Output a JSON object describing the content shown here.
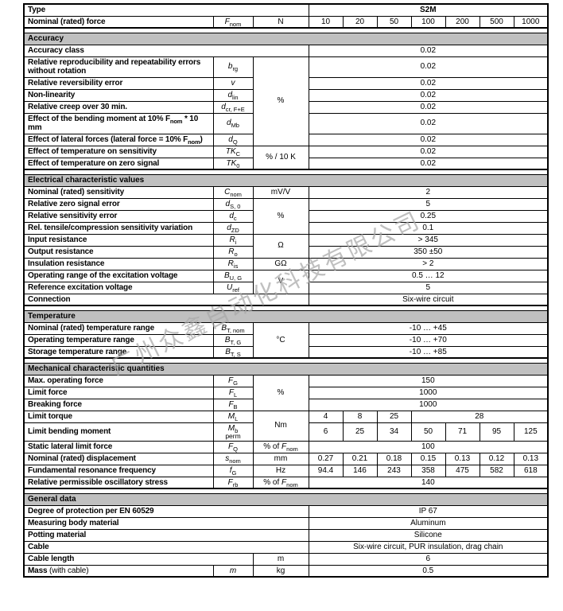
{
  "watermark": {
    "text": "广州众鑫自动化科技有限公司",
    "color": "#a9a9a9"
  },
  "model": "S2M",
  "table": {
    "rows": [
      {
        "kind": "r",
        "cells": [
          {
            "t": "Type",
            "k": "l",
            "c": 3
          },
          {
            "t": "S2M",
            "k": "vb",
            "c": 7
          }
        ]
      },
      {
        "kind": "r",
        "cells": [
          {
            "t": "Nominal (rated) force",
            "k": "l"
          },
          {
            "t": "F~nom~",
            "k": "s"
          },
          {
            "t": "N",
            "k": "u"
          },
          {
            "t": "10",
            "k": "v"
          },
          {
            "t": "20",
            "k": "v"
          },
          {
            "t": "50",
            "k": "v"
          },
          {
            "t": "100",
            "k": "v"
          },
          {
            "t": "200",
            "k": "v"
          },
          {
            "t": "500",
            "k": "v"
          },
          {
            "t": "1000",
            "k": "v"
          }
        ]
      },
      {
        "kind": "g"
      },
      {
        "kind": "h",
        "title": "Accuracy"
      },
      {
        "kind": "r",
        "cells": [
          {
            "t": "Accuracy class",
            "k": "l",
            "c": 3
          },
          {
            "t": "0.02",
            "k": "v",
            "c": 7
          }
        ]
      },
      {
        "kind": "r",
        "cells": [
          {
            "t": "Relative reproducibility and repeatability errors without rotation",
            "k": "l"
          },
          {
            "t": "b~rg~",
            "k": "s"
          },
          {
            "t": "%",
            "k": "u",
            "r": 6
          },
          {
            "t": "0.02",
            "k": "v",
            "c": 7
          }
        ]
      },
      {
        "kind": "r",
        "cells": [
          {
            "t": "Relative reversibility error",
            "k": "l"
          },
          {
            "t": "v",
            "k": "s"
          },
          {
            "t": "0.02",
            "k": "v",
            "c": 7
          }
        ]
      },
      {
        "kind": "r",
        "cells": [
          {
            "t": "Non-linearity",
            "k": "l"
          },
          {
            "t": "d~lin~",
            "k": "s"
          },
          {
            "t": "0.02",
            "k": "v",
            "c": 7
          }
        ]
      },
      {
        "kind": "r",
        "cells": [
          {
            "t": "Relative creep over 30 min.",
            "k": "l"
          },
          {
            "t": "d~cr, F+E~",
            "k": "s"
          },
          {
            "t": "0.02",
            "k": "v",
            "c": 7
          }
        ]
      },
      {
        "kind": "r",
        "cells": [
          {
            "t": "Effect of the bending moment at 10% F~nom~ * 10 mm",
            "k": "l"
          },
          {
            "t": "d~Mb~",
            "k": "s"
          },
          {
            "t": "0.02",
            "k": "v",
            "c": 7
          }
        ]
      },
      {
        "kind": "r",
        "cells": [
          {
            "t": "Effect of lateral forces (lateral force = 10% F~nom~)",
            "k": "l"
          },
          {
            "t": "d~Q~",
            "k": "s"
          },
          {
            "t": "0.02",
            "k": "v",
            "c": 7
          }
        ]
      },
      {
        "kind": "r",
        "cells": [
          {
            "t": "Effect of temperature on sensitivity",
            "k": "l"
          },
          {
            "t": "TK~C~",
            "k": "s"
          },
          {
            "t": "% / 10 K",
            "k": "u",
            "r": 2
          },
          {
            "t": "0.02",
            "k": "v",
            "c": 7
          }
        ]
      },
      {
        "kind": "r",
        "cells": [
          {
            "t": "Effect of temperature on zero signal",
            "k": "l"
          },
          {
            "t": "TK~0~",
            "k": "s"
          },
          {
            "t": "0.02",
            "k": "v",
            "c": 7
          }
        ]
      },
      {
        "kind": "g"
      },
      {
        "kind": "h",
        "title": "Electrical characteristic values"
      },
      {
        "kind": "r",
        "cells": [
          {
            "t": "Nominal (rated) sensitivity",
            "k": "l"
          },
          {
            "t": "C~nom~",
            "k": "s"
          },
          {
            "t": "mV/V",
            "k": "u"
          },
          {
            "t": "2",
            "k": "v",
            "c": 7
          }
        ]
      },
      {
        "kind": "r",
        "cells": [
          {
            "t": "Relative zero signal error",
            "k": "l"
          },
          {
            "t": "d~S, 0~",
            "k": "s"
          },
          {
            "t": "%",
            "k": "u",
            "r": 3
          },
          {
            "t": "5",
            "k": "v",
            "c": 7
          }
        ]
      },
      {
        "kind": "r",
        "cells": [
          {
            "t": "Relative sensitivity error",
            "k": "l"
          },
          {
            "t": "d~c~",
            "k": "s"
          },
          {
            "t": "0.25",
            "k": "v",
            "c": 7
          }
        ]
      },
      {
        "kind": "r",
        "cells": [
          {
            "t": "Rel. tensile/compression sensitivity variation",
            "k": "l"
          },
          {
            "t": "d~ZD~",
            "k": "s"
          },
          {
            "t": "0.1",
            "k": "v",
            "c": 7
          }
        ]
      },
      {
        "kind": "r",
        "cells": [
          {
            "t": "Input resistance",
            "k": "l"
          },
          {
            "t": "R~i~",
            "k": "s"
          },
          {
            "t": "Ω",
            "k": "u",
            "r": 2
          },
          {
            "t": "> 345",
            "k": "v",
            "c": 7
          }
        ]
      },
      {
        "kind": "r",
        "cells": [
          {
            "t": "Output resistance",
            "k": "l"
          },
          {
            "t": "R~o~",
            "k": "s"
          },
          {
            "t": "350 ±50",
            "k": "v",
            "c": 7
          }
        ]
      },
      {
        "kind": "r",
        "cells": [
          {
            "t": "Insulation resistance",
            "k": "l"
          },
          {
            "t": "R~is~",
            "k": "s"
          },
          {
            "t": "GΩ",
            "k": "u"
          },
          {
            "t": "> 2",
            "k": "v",
            "c": 7
          }
        ]
      },
      {
        "kind": "r",
        "cells": [
          {
            "t": "Operating range of the excitation voltage",
            "k": "l"
          },
          {
            "t": "B~U, G~",
            "k": "s"
          },
          {
            "t": "V",
            "k": "u",
            "r": 2
          },
          {
            "t": "0.5 … 12",
            "k": "v",
            "c": 7
          }
        ]
      },
      {
        "kind": "r",
        "cells": [
          {
            "t": "Reference excitation voltage",
            "k": "l"
          },
          {
            "t": "U~ref~",
            "k": "s"
          },
          {
            "t": "5",
            "k": "v",
            "c": 7
          }
        ]
      },
      {
        "kind": "r",
        "cells": [
          {
            "t": "Connection",
            "k": "l",
            "c": 3
          },
          {
            "t": "Six-wire circuit",
            "k": "v",
            "c": 7
          }
        ]
      },
      {
        "kind": "g"
      },
      {
        "kind": "h",
        "title": "Temperature"
      },
      {
        "kind": "r",
        "cells": [
          {
            "t": "Nominal (rated) temperature range",
            "k": "l"
          },
          {
            "t": "B~T, nom~",
            "k": "s"
          },
          {
            "t": "°C",
            "k": "u",
            "r": 3
          },
          {
            "t": "-10 … +45",
            "k": "v",
            "c": 7
          }
        ]
      },
      {
        "kind": "r",
        "cells": [
          {
            "t": "Operating temperature range",
            "k": "l"
          },
          {
            "t": "B~T, G~",
            "k": "s"
          },
          {
            "t": "-10 … +70",
            "k": "v",
            "c": 7
          }
        ]
      },
      {
        "kind": "r",
        "cells": [
          {
            "t": "Storage temperature range",
            "k": "l"
          },
          {
            "t": "B~T, S~",
            "k": "s"
          },
          {
            "t": "-10 … +85",
            "k": "v",
            "c": 7
          }
        ]
      },
      {
        "kind": "g"
      },
      {
        "kind": "h",
        "title": "Mechanical characteristic quantities"
      },
      {
        "kind": "r",
        "cells": [
          {
            "t": "Max. operating force",
            "k": "l"
          },
          {
            "t": "F~G~",
            "k": "s"
          },
          {
            "t": "%",
            "k": "u",
            "r": 3
          },
          {
            "t": "150",
            "k": "v",
            "c": 7
          }
        ]
      },
      {
        "kind": "r",
        "cells": [
          {
            "t": "Limit force",
            "k": "l"
          },
          {
            "t": "F~L~",
            "k": "s"
          },
          {
            "t": "1000",
            "k": "v",
            "c": 7
          }
        ]
      },
      {
        "kind": "r",
        "cells": [
          {
            "t": "Breaking force",
            "k": "l"
          },
          {
            "t": "F~B~",
            "k": "s"
          },
          {
            "t": "1000",
            "k": "v",
            "c": 7
          }
        ]
      },
      {
        "kind": "r",
        "cells": [
          {
            "t": "Limit torque",
            "k": "l"
          },
          {
            "t": "M~L~",
            "k": "s"
          },
          {
            "t": "Nm",
            "k": "u",
            "r": 2
          },
          {
            "t": "4",
            "k": "v"
          },
          {
            "t": "8",
            "k": "v"
          },
          {
            "t": "25",
            "k": "v"
          },
          {
            "t": "28",
            "k": "v",
            "c": 4
          }
        ]
      },
      {
        "kind": "r",
        "cells": [
          {
            "t": "Limit bending moment",
            "k": "l"
          },
          {
            "t": "M~b~",
            "t2": "perm",
            "k": "s"
          },
          {
            "t": "6",
            "k": "v"
          },
          {
            "t": "25",
            "k": "v"
          },
          {
            "t": "34",
            "k": "v"
          },
          {
            "t": "50",
            "k": "v"
          },
          {
            "t": "71",
            "k": "v"
          },
          {
            "t": "95",
            "k": "v"
          },
          {
            "t": "125",
            "k": "v"
          }
        ]
      },
      {
        "kind": "r",
        "cells": [
          {
            "t": "Static lateral limit force",
            "k": "l"
          },
          {
            "t": "F~Q~",
            "k": "s"
          },
          {
            "t": "% of [[F]]~nom~",
            "k": "u"
          },
          {
            "t": "100",
            "k": "v",
            "c": 7
          }
        ]
      },
      {
        "kind": "r",
        "cells": [
          {
            "t": "Nominal (rated) displacement",
            "k": "l"
          },
          {
            "t": "s~nom~",
            "k": "s"
          },
          {
            "t": "mm",
            "k": "u"
          },
          {
            "t": "0.27",
            "k": "v"
          },
          {
            "t": "0.21",
            "k": "v"
          },
          {
            "t": "0.18",
            "k": "v"
          },
          {
            "t": "0.15",
            "k": "v"
          },
          {
            "t": "0.13",
            "k": "v"
          },
          {
            "t": "0.12",
            "k": "v"
          },
          {
            "t": "0.13",
            "k": "v"
          }
        ]
      },
      {
        "kind": "r",
        "cells": [
          {
            "t": "Fundamental resonance frequency",
            "k": "l"
          },
          {
            "t": "f~G~",
            "k": "s"
          },
          {
            "t": "Hz",
            "k": "u"
          },
          {
            "t": "94.4",
            "k": "v"
          },
          {
            "t": "146",
            "k": "v"
          },
          {
            "t": "243",
            "k": "v"
          },
          {
            "t": "358",
            "k": "v"
          },
          {
            "t": "475",
            "k": "v"
          },
          {
            "t": "582",
            "k": "v"
          },
          {
            "t": "618",
            "k": "v"
          }
        ]
      },
      {
        "kind": "r",
        "cells": [
          {
            "t": "Relative permissible oscillatory stress",
            "k": "l"
          },
          {
            "t": "F~rb~",
            "k": "s"
          },
          {
            "t": "% of [[F]]~nom~",
            "k": "u"
          },
          {
            "t": "140",
            "k": "v",
            "c": 7
          }
        ]
      },
      {
        "kind": "g"
      },
      {
        "kind": "h",
        "title": "General data"
      },
      {
        "kind": "r",
        "cells": [
          {
            "t": "Degree of protection per EN 60529",
            "k": "l",
            "c": 3
          },
          {
            "t": "IP 67",
            "k": "v",
            "c": 7
          }
        ]
      },
      {
        "kind": "r",
        "cells": [
          {
            "t": "Measuring body material",
            "k": "l",
            "c": 3
          },
          {
            "t": "Aluminum",
            "k": "v",
            "c": 7
          }
        ]
      },
      {
        "kind": "r",
        "cells": [
          {
            "t": "Potting material",
            "k": "l",
            "c": 3
          },
          {
            "t": "Silicone",
            "k": "v",
            "c": 7
          }
        ]
      },
      {
        "kind": "r",
        "cells": [
          {
            "t": "Cable",
            "k": "l",
            "c": 3
          },
          {
            "t": "Six-wire circuit, PUR insulation, drag chain",
            "k": "v",
            "c": 7
          }
        ]
      },
      {
        "kind": "r",
        "cells": [
          {
            "t": "Cable length",
            "k": "l",
            "c": 2
          },
          {
            "t": "m",
            "k": "u"
          },
          {
            "t": "6",
            "k": "v",
            "c": 7
          }
        ]
      },
      {
        "kind": "r",
        "cells": [
          {
            "t": "Mass{ (with cable)}",
            "k": "l"
          },
          {
            "t": "m",
            "k": "s"
          },
          {
            "t": "kg",
            "k": "u"
          },
          {
            "t": "0.5",
            "k": "v",
            "c": 7
          }
        ]
      }
    ]
  }
}
